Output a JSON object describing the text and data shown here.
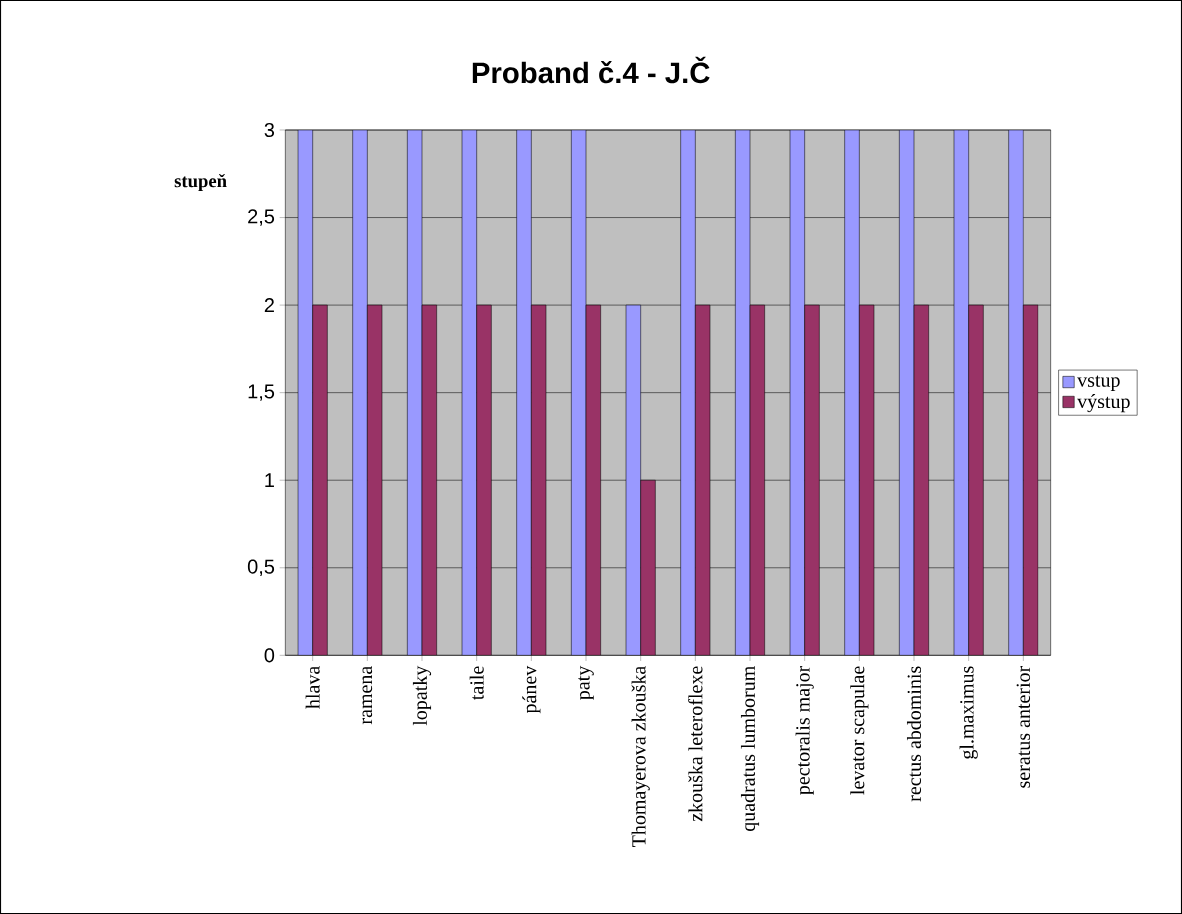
{
  "chart_data": {
    "type": "bar",
    "title": "Proband č.4 - J.Č",
    "ylabel": "stupeň",
    "categories": [
      "hlava",
      "ramena",
      "lopatky",
      "taile",
      "pánev",
      "paty",
      "Thomayerova zkouška",
      "zkouška leteroflexe",
      "quadratus lumborum",
      "pectoralis major",
      "levator scapulae",
      "rectus abdominis",
      "gl.maximus",
      "seratus anterior"
    ],
    "series": [
      {
        "name": "vstup",
        "color": "#9999ff",
        "values": [
          3,
          3,
          3,
          3,
          3,
          3,
          2,
          3,
          3,
          3,
          3,
          3,
          3,
          3
        ]
      },
      {
        "name": "výstup",
        "color": "#993366",
        "values": [
          2,
          2,
          2,
          2,
          2,
          2,
          1,
          2,
          2,
          2,
          2,
          2,
          2,
          2
        ]
      }
    ],
    "ylim": [
      0,
      3
    ],
    "yticks": [
      0,
      {
        "value": 0.5,
        "label": "0,5"
      },
      1,
      {
        "value": 1.5,
        "label": "1,5"
      },
      2,
      {
        "value": 2.5,
        "label": "2,5"
      },
      3
    ],
    "grid": "y",
    "legend": "right"
  }
}
